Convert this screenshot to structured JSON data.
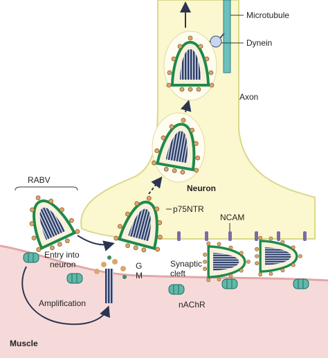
{
  "labels": {
    "microtubule": "Microtubule",
    "dynein": "Dynein",
    "axon": "Axon",
    "neuron": "Neuron",
    "rabv": "RABV",
    "p75ntr": "p75NTR",
    "ncam": "NCAM",
    "entry": [
      "Entry into",
      "neuron"
    ],
    "g": "G",
    "m": "M",
    "synaptic_cleft": [
      "Synaptic",
      "cleft"
    ],
    "amplification": "Amplification",
    "nachr": "nAChR",
    "muscle": "Muscle"
  }
}
